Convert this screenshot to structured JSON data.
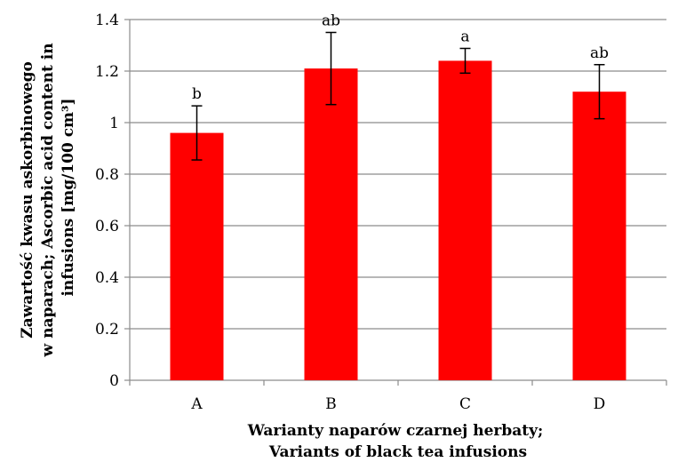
{
  "chart_data": {
    "type": "bar",
    "categories": [
      "A",
      "B",
      "C",
      "D"
    ],
    "values": [
      0.96,
      1.21,
      1.24,
      1.12
    ],
    "errors": [
      0.105,
      0.14,
      0.048,
      0.105
    ],
    "significance": [
      "b",
      "ab",
      "a",
      "ab"
    ],
    "ylim": [
      0,
      1.4
    ],
    "yticks": [
      0,
      0.2,
      0.4,
      0.6,
      0.8,
      1,
      1.2,
      1.4
    ],
    "ytick_labels": [
      "0",
      "0.2",
      "0.4",
      "0.6",
      "0.8",
      "1",
      "1.2",
      "1.4"
    ],
    "ylabel_lines": [
      "Zawartość kwasu askorbinowego",
      "w naparach; Ascorbic acid content in",
      "infusions [mg/100 cm³]"
    ],
    "xlabel_lines": [
      "Warianty naparów czarnej herbaty;",
      "Variants of black tea infusions"
    ],
    "grid": true,
    "colors": {
      "bar": "#ff0000",
      "grid": "#8c8c8c",
      "axis": "#8c8c8c",
      "error": "#000000"
    }
  }
}
